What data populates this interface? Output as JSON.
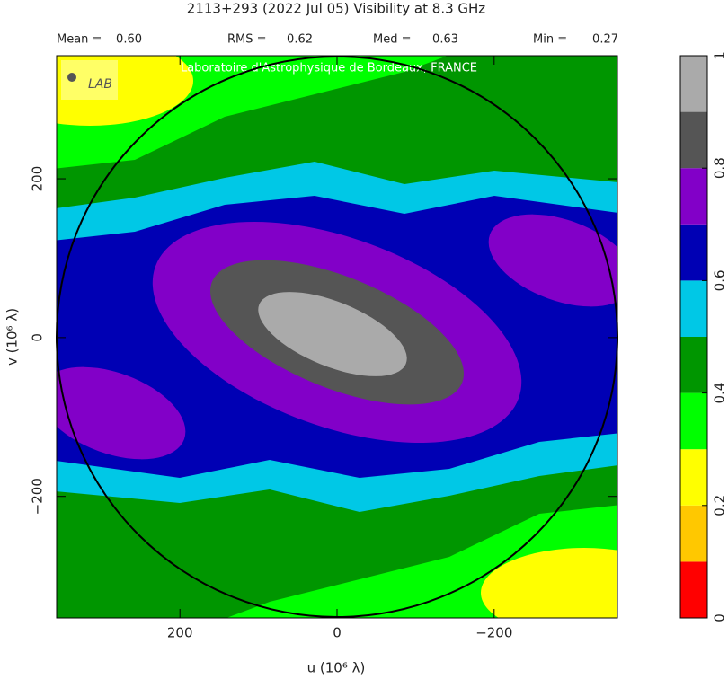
{
  "chart_data": {
    "type": "contour",
    "title": "2113+293   (2022 Jul 05)   Visibility at  8.3 GHz",
    "stats": [
      {
        "label": "Mean =",
        "value": "0.60"
      },
      {
        "label": "RMS =",
        "value": "0.62"
      },
      {
        "label": "Med =",
        "value": "0.63"
      },
      {
        "label": "Min =",
        "value": "0.27"
      }
    ],
    "watermark": "Laboratoire d'Astrophysique de Bordeaux, FRANCE",
    "x_label": "u  (10⁶ λ)",
    "y_label": "v  (10⁶ λ)",
    "xlim": [
      357,
      -357
    ],
    "ylim": [
      355,
      -353
    ],
    "xticks": [
      200,
      0,
      {
        "value": -200,
        "label": "−200"
      }
    ],
    "yticks": [
      200,
      0,
      {
        "value": -200,
        "label": "−200"
      }
    ],
    "colorbar": {
      "levels": [
        0,
        0.1,
        0.2,
        0.3,
        0.4,
        0.5,
        0.6,
        0.7,
        0.8,
        0.9,
        1
      ],
      "colors": [
        "#ff0000",
        "#ffc800",
        "#ffff00",
        "#00ff00",
        "#009600",
        "#00c8e6",
        "#0000b4",
        "#8200c8",
        "#555555",
        "#aaaaaa"
      ],
      "ticks": [
        0,
        0.2,
        0.4,
        0.6,
        0.8,
        1
      ]
    }
  }
}
